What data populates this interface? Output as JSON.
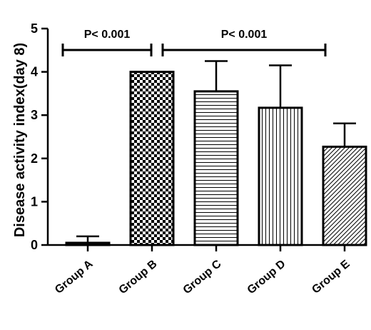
{
  "chart_data": {
    "type": "bar",
    "title": "",
    "xlabel": "",
    "ylabel": "Disease activity index(day 8)",
    "ylim": [
      0,
      5
    ],
    "yticks": [
      "0",
      "1",
      "2",
      "3",
      "4",
      "5"
    ],
    "grid": false,
    "categories": [
      "Group A",
      "Group B",
      "Group C",
      "Group D",
      "Group E"
    ],
    "values": [
      0.05,
      4.0,
      3.55,
      3.17,
      2.27
    ],
    "errors": [
      0.15,
      0.0,
      0.7,
      0.98,
      0.54
    ],
    "patterns": [
      "none",
      "checkerboard",
      "horizontal-lines",
      "vertical-lines",
      "diagonal-lines"
    ],
    "annotations": [
      {
        "text": "P< 0.001",
        "from": "Group A",
        "to": "Group B"
      },
      {
        "text": "P< 0.001",
        "from": "Group B",
        "to": "Group E"
      }
    ]
  }
}
